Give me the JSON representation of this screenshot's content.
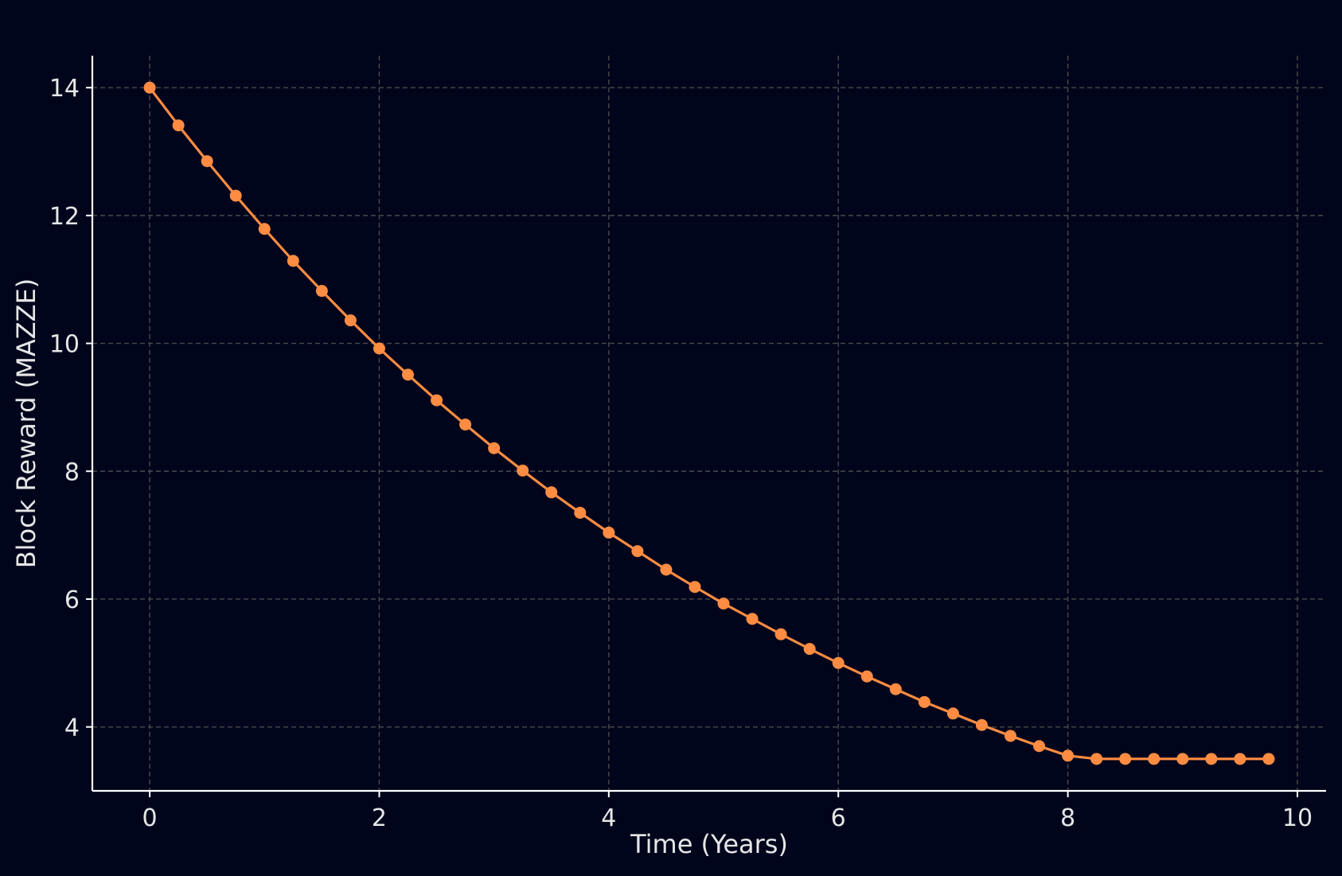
{
  "chart_data": {
    "type": "line",
    "title": "",
    "xlabel": "Time (Years)",
    "ylabel": "Block Reward (MAZZE)",
    "xlim": [
      -0.5,
      10.25
    ],
    "ylim": [
      3.0,
      14.5
    ],
    "xticks": [
      0,
      2,
      4,
      6,
      8,
      10
    ],
    "yticks": [
      4,
      6,
      8,
      10,
      12,
      14
    ],
    "grid": true,
    "legend": "none",
    "series": [
      {
        "color": "#ff8c42",
        "marker": "circle",
        "x": [
          0,
          0.25,
          0.5,
          0.75,
          1.0,
          1.25,
          1.5,
          1.75,
          2.0,
          2.25,
          2.5,
          2.75,
          3.0,
          3.25,
          3.5,
          3.75,
          4.0,
          4.25,
          4.5,
          4.75,
          5.0,
          5.25,
          5.5,
          5.75,
          6.0,
          6.25,
          6.5,
          6.75,
          7.0,
          7.25,
          7.5,
          7.75,
          8.0,
          8.25,
          8.5,
          8.75,
          9.0,
          9.25,
          9.5,
          9.75
        ],
        "y": [
          14.0,
          13.41,
          12.85,
          12.31,
          11.79,
          11.29,
          10.82,
          10.36,
          9.92,
          9.51,
          9.11,
          8.73,
          8.36,
          8.01,
          7.67,
          7.35,
          7.04,
          6.75,
          6.46,
          6.19,
          5.93,
          5.69,
          5.45,
          5.22,
          5.0,
          4.79,
          4.59,
          4.39,
          4.21,
          4.03,
          3.86,
          3.7,
          3.55,
          3.5,
          3.5,
          3.5,
          3.5,
          3.5,
          3.5,
          3.5
        ]
      }
    ]
  },
  "colors": {
    "background": "#00051c",
    "line": "#ff8c42",
    "text": "#e6e6e6",
    "grid": "#4a4a4a",
    "axis": "#ffffff"
  }
}
